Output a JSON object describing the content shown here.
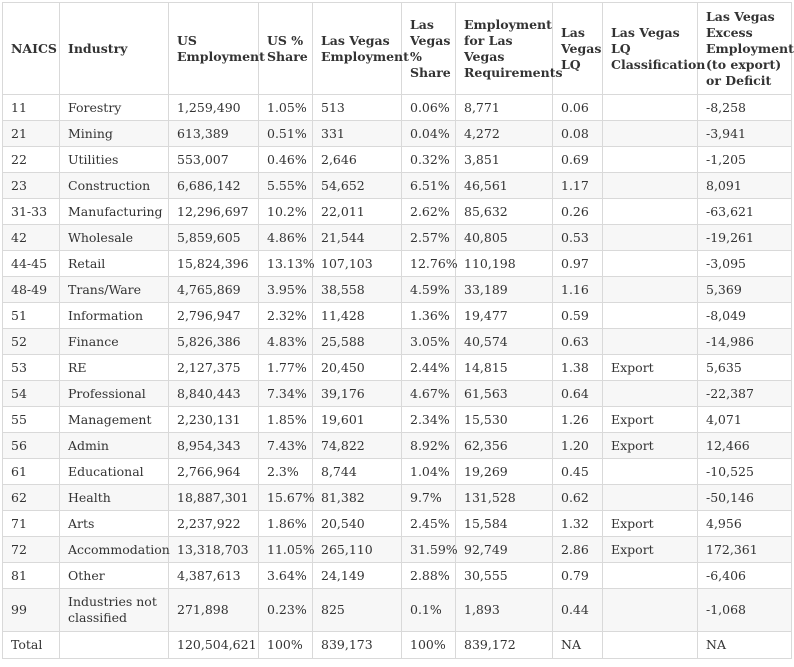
{
  "headers": [
    "NAICS",
    "Industry",
    "US Employment",
    "US % Share",
    "Las Vegas Employment",
    "Las Vegas % Share",
    "Employment for Las Vegas Requirements",
    "Las Vegas LQ",
    "Las Vegas LQ Classification",
    "Las Vegas Excess Employment (to export) or Deficit"
  ],
  "rows": [
    [
      "11",
      "Forestry",
      "1,259,490",
      "1.05%",
      "513",
      "0.06%",
      "8,771",
      "0.06",
      "",
      "-8,258"
    ],
    [
      "21",
      "Mining",
      "613,389",
      "0.51%",
      "331",
      "0.04%",
      "4,272",
      "0.08",
      "",
      "-3,941"
    ],
    [
      "22",
      "Utilities",
      "553,007",
      "0.46%",
      "2,646",
      "0.32%",
      "3,851",
      "0.69",
      "",
      "-1,205"
    ],
    [
      "23",
      "Construction",
      "6,686,142",
      "5.55%",
      "54,652",
      "6.51%",
      "46,561",
      "1.17",
      "",
      "8,091"
    ],
    [
      "31-33",
      "Manufacturing",
      "12,296,697",
      "10.2%",
      "22,011",
      "2.62%",
      "85,632",
      "0.26",
      "",
      "-63,621"
    ],
    [
      "42",
      "Wholesale",
      "5,859,605",
      "4.86%",
      "21,544",
      "2.57%",
      "40,805",
      "0.53",
      "",
      "-19,261"
    ],
    [
      "44-45",
      "Retail",
      "15,824,396",
      "13.13%",
      "107,103",
      "12.76%",
      "110,198",
      "0.97",
      "",
      "-3,095"
    ],
    [
      "48-49",
      "Trans/Ware",
      "4,765,869",
      "3.95%",
      "38,558",
      "4.59%",
      "33,189",
      "1.16",
      "",
      "5,369"
    ],
    [
      "51",
      "Information",
      "2,796,947",
      "2.32%",
      "11,428",
      "1.36%",
      "19,477",
      "0.59",
      "",
      "-8,049"
    ],
    [
      "52",
      "Finance",
      "5,826,386",
      "4.83%",
      "25,588",
      "3.05%",
      "40,574",
      "0.63",
      "",
      "-14,986"
    ],
    [
      "53",
      "RE",
      "2,127,375",
      "1.77%",
      "20,450",
      "2.44%",
      "14,815",
      "1.38",
      "Export",
      "5,635"
    ],
    [
      "54",
      "Professional",
      "8,840,443",
      "7.34%",
      "39,176",
      "4.67%",
      "61,563",
      "0.64",
      "",
      "-22,387"
    ],
    [
      "55",
      "Management",
      "2,230,131",
      "1.85%",
      "19,601",
      "2.34%",
      "15,530",
      "1.26",
      "Export",
      "4,071"
    ],
    [
      "56",
      "Admin",
      "8,954,343",
      "7.43%",
      "74,822",
      "8.92%",
      "62,356",
      "1.20",
      "Export",
      "12,466"
    ],
    [
      "61",
      "Educational",
      "2,766,964",
      "2.3%",
      "8,744",
      "1.04%",
      "19,269",
      "0.45",
      "",
      "-10,525"
    ],
    [
      "62",
      "Health",
      "18,887,301",
      "15.67%",
      "81,382",
      "9.7%",
      "131,528",
      "0.62",
      "",
      "-50,146"
    ],
    [
      "71",
      "Arts",
      "2,237,922",
      "1.86%",
      "20,540",
      "2.45%",
      "15,584",
      "1.32",
      "Export",
      "4,956"
    ],
    [
      "72",
      "Accommodation",
      "13,318,703",
      "11.05%",
      "265,110",
      "31.59%",
      "92,749",
      "2.86",
      "Export",
      "172,361"
    ],
    [
      "81",
      "Other",
      "4,387,613",
      "3.64%",
      "24,149",
      "2.88%",
      "30,555",
      "0.79",
      "",
      "-6,406"
    ],
    [
      "99",
      "Industries not classified",
      "271,898",
      "0.23%",
      "825",
      "0.1%",
      "1,893",
      "0.44",
      "",
      "-1,068"
    ],
    [
      "Total",
      "",
      "120,504,621",
      "100%",
      "839,173",
      "100%",
      "839,172",
      "NA",
      "",
      "NA"
    ]
  ]
}
